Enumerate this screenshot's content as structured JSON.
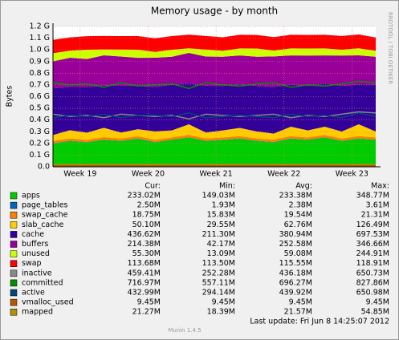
{
  "chart_data": {
    "type": "area",
    "title": "Memory usage - by month",
    "ylabel": "Bytes",
    "side_text": "RRDTOOL / TOBI OETIKER",
    "x": [
      18.6,
      18.85,
      19.1,
      19.35,
      19.6,
      19.85,
      20.1,
      20.35,
      20.6,
      20.85,
      21.1,
      21.35,
      21.6,
      21.85,
      22.1,
      22.35,
      22.6,
      22.85,
      23.1,
      23.35
    ],
    "xlim": [
      18.6,
      23.35
    ],
    "xticks": [
      {
        "value": 19,
        "label": "Week 19"
      },
      {
        "value": 20,
        "label": "Week 20"
      },
      {
        "value": 21,
        "label": "Week 21"
      },
      {
        "value": 22,
        "label": "Week 22"
      },
      {
        "value": 23,
        "label": "Week 23"
      }
    ],
    "ylim": [
      0,
      1.2
    ],
    "yticks": [
      {
        "value": 0,
        "label": "0.0"
      },
      {
        "value": 0.1,
        "label": "0.1 G"
      },
      {
        "value": 0.2,
        "label": "0.2 G"
      },
      {
        "value": 0.3,
        "label": "0.3 G"
      },
      {
        "value": 0.4,
        "label": "0.4 G"
      },
      {
        "value": 0.5,
        "label": "0.5 G"
      },
      {
        "value": 0.6,
        "label": "0.6 G"
      },
      {
        "value": 0.7,
        "label": "0.7 G"
      },
      {
        "value": 0.8,
        "label": "0.8 G"
      },
      {
        "value": 0.9,
        "label": "0.9 G"
      },
      {
        "value": 1.0,
        "label": "1.0 G"
      },
      {
        "value": 1.1,
        "label": "1.1 G"
      },
      {
        "value": 1.2,
        "label": "1.2 G"
      }
    ],
    "grid": true,
    "series": [
      {
        "name": "apps",
        "color": "#00cc00",
        "stacked": true,
        "values": [
          0.2,
          0.22,
          0.21,
          0.23,
          0.22,
          0.24,
          0.21,
          0.23,
          0.25,
          0.22,
          0.23,
          0.24,
          0.22,
          0.21,
          0.24,
          0.23,
          0.25,
          0.22,
          0.24,
          0.23
        ]
      },
      {
        "name": "page_tables",
        "color": "#0066b3",
        "stacked": true,
        "values": [
          0.0025,
          0.0025,
          0.0025,
          0.0025,
          0.0025,
          0.0025,
          0.0025,
          0.0025,
          0.0025,
          0.0025,
          0.0025,
          0.0025,
          0.0025,
          0.0025,
          0.0025,
          0.0025,
          0.0025,
          0.0025,
          0.0025,
          0.0025
        ]
      },
      {
        "name": "swap_cache",
        "color": "#ff8000",
        "stacked": true,
        "values": [
          0.019,
          0.02,
          0.019,
          0.021,
          0.02,
          0.019,
          0.02,
          0.019,
          0.021,
          0.02,
          0.019,
          0.02,
          0.019,
          0.021,
          0.02,
          0.019,
          0.02,
          0.019,
          0.021,
          0.019
        ]
      },
      {
        "name": "slab_cache",
        "color": "#ffcc00",
        "stacked": true,
        "values": [
          0.05,
          0.07,
          0.06,
          0.08,
          0.05,
          0.06,
          0.07,
          0.06,
          0.09,
          0.05,
          0.06,
          0.07,
          0.06,
          0.05,
          0.08,
          0.06,
          0.07,
          0.06,
          0.1,
          0.05
        ]
      },
      {
        "name": "cache",
        "color": "#330099",
        "stacked": true,
        "values": [
          0.4,
          0.37,
          0.39,
          0.36,
          0.4,
          0.37,
          0.38,
          0.39,
          0.35,
          0.4,
          0.38,
          0.37,
          0.39,
          0.4,
          0.36,
          0.38,
          0.37,
          0.39,
          0.34,
          0.4
        ]
      },
      {
        "name": "buffers",
        "color": "#990099",
        "stacked": true,
        "values": [
          0.23,
          0.25,
          0.24,
          0.26,
          0.25,
          0.24,
          0.25,
          0.24,
          0.26,
          0.25,
          0.25,
          0.25,
          0.25,
          0.26,
          0.25,
          0.26,
          0.24,
          0.26,
          0.25,
          0.24
        ]
      },
      {
        "name": "unused",
        "color": "#ccff00",
        "stacked": true,
        "values": [
          0.07,
          0.06,
          0.08,
          0.05,
          0.06,
          0.07,
          0.05,
          0.06,
          0.04,
          0.06,
          0.05,
          0.06,
          0.07,
          0.05,
          0.06,
          0.06,
          0.06,
          0.05,
          0.06,
          0.05
        ]
      },
      {
        "name": "swap",
        "color": "#ff0000",
        "stacked": true,
        "values": [
          0.114,
          0.114,
          0.115,
          0.115,
          0.115,
          0.116,
          0.116,
          0.116,
          0.116,
          0.116,
          0.116,
          0.116,
          0.116,
          0.116,
          0.116,
          0.116,
          0.116,
          0.117,
          0.118,
          0.114
        ]
      },
      {
        "name": "inactive",
        "color": "#888888",
        "stacked": false,
        "values": [
          0.45,
          0.43,
          0.44,
          0.42,
          0.45,
          0.44,
          0.43,
          0.44,
          0.41,
          0.45,
          0.44,
          0.43,
          0.44,
          0.45,
          0.42,
          0.44,
          0.43,
          0.45,
          0.47,
          0.46
        ]
      },
      {
        "name": "committed",
        "color": "#008f00",
        "stacked": false,
        "values": [
          0.72,
          0.7,
          0.71,
          0.68,
          0.72,
          0.69,
          0.7,
          0.71,
          0.67,
          0.72,
          0.7,
          0.69,
          0.71,
          0.72,
          0.68,
          0.7,
          0.69,
          0.71,
          0.73,
          0.72
        ]
      },
      {
        "name": "active",
        "color": "#00487d",
        "stacked": false,
        "values": [
          0.42,
          0.44,
          0.43,
          0.45,
          0.42,
          0.44,
          0.44,
          0.43,
          0.46,
          0.42,
          0.43,
          0.44,
          0.43,
          0.42,
          0.45,
          0.43,
          0.44,
          0.42,
          0.46,
          0.43
        ]
      },
      {
        "name": "vmalloc_used",
        "color": "#b35a00",
        "stacked": false,
        "values": [
          0.009,
          0.009,
          0.009,
          0.009,
          0.009,
          0.009,
          0.009,
          0.009,
          0.009,
          0.009,
          0.009,
          0.009,
          0.009,
          0.009,
          0.009,
          0.009,
          0.009,
          0.009,
          0.009,
          0.009
        ]
      },
      {
        "name": "mapped",
        "color": "#b38f00",
        "stacked": false,
        "values": [
          0.02,
          0.02,
          0.019,
          0.021,
          0.02,
          0.02,
          0.019,
          0.021,
          0.02,
          0.02,
          0.019,
          0.021,
          0.02,
          0.02,
          0.019,
          0.021,
          0.02,
          0.02,
          0.019,
          0.021
        ]
      }
    ],
    "legend_table": {
      "header": [
        "Cur:",
        "Min:",
        "Avg:",
        "Max:"
      ],
      "rows": [
        [
          "233.02M",
          "149.03M",
          "233.38M",
          "348.77M"
        ],
        [
          "2.50M",
          "1.93M",
          "2.38M",
          "3.61M"
        ],
        [
          "18.75M",
          "15.83M",
          "19.54M",
          "21.31M"
        ],
        [
          "50.10M",
          "29.55M",
          "62.76M",
          "126.49M"
        ],
        [
          "436.62M",
          "211.30M",
          "380.94M",
          "697.53M"
        ],
        [
          "214.38M",
          "42.17M",
          "252.58M",
          "346.66M"
        ],
        [
          "55.30M",
          "13.09M",
          "59.08M",
          "244.91M"
        ],
        [
          "113.68M",
          "113.50M",
          "115.55M",
          "118.91M"
        ],
        [
          "459.41M",
          "252.28M",
          "436.18M",
          "650.73M"
        ],
        [
          "716.97M",
          "557.11M",
          "696.27M",
          "827.86M"
        ],
        [
          "432.99M",
          "294.14M",
          "439.92M",
          "650.98M"
        ],
        [
          "9.45M",
          "9.45M",
          "9.45M",
          "9.45M"
        ],
        [
          "21.27M",
          "18.39M",
          "21.57M",
          "54.85M"
        ]
      ]
    },
    "last_update": "Last update:  Fri Jun  8 14:25:07 2012",
    "version": "Munin 1.4.5"
  }
}
